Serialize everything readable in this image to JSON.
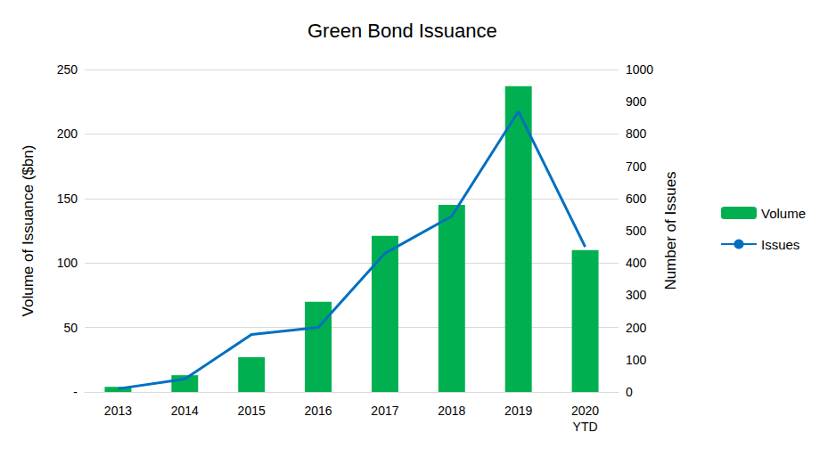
{
  "chart_data": {
    "type": "bar",
    "title": "Green Bond Issuance",
    "categories": [
      "2013",
      "2014",
      "2015",
      "2016",
      "2017",
      "2018",
      "2019",
      "2020\nYTD"
    ],
    "series": [
      {
        "name": "Volume",
        "type": "bar",
        "color": "#00b050",
        "values": [
          4,
          13,
          27,
          70,
          121,
          145,
          237,
          110
        ]
      },
      {
        "name": "Issues",
        "type": "line",
        "axis": "y2",
        "color": "#0070c0",
        "values": [
          10,
          40,
          178,
          200,
          430,
          545,
          870,
          450
        ]
      }
    ],
    "y_label": "Volume of Issuance ($bn)",
    "y2_label": "Number of Issues",
    "ylim": [
      0,
      250
    ],
    "yticks": [
      {
        "value": 0,
        "label": "-"
      },
      50,
      100,
      150,
      200,
      250
    ],
    "y2lim": [
      0,
      1000
    ],
    "y2ticks": [
      0,
      100,
      200,
      300,
      400,
      500,
      600,
      700,
      800,
      900,
      1000
    ],
    "grid": true,
    "legend": "right"
  }
}
